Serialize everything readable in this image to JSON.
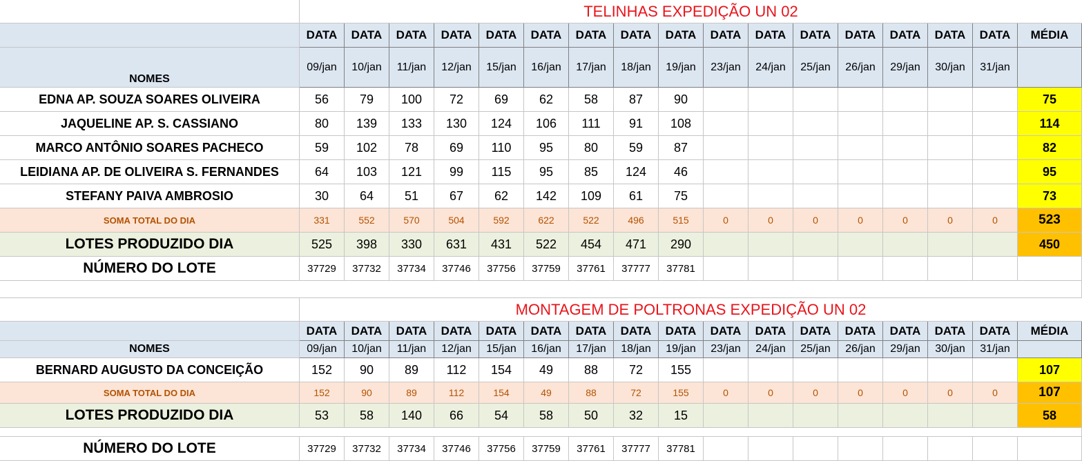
{
  "columns": {
    "data_label": "DATA",
    "media_label": "MÉDIA",
    "names_label": "NOMES",
    "dates": [
      "09/jan",
      "10/jan",
      "11/jan",
      "12/jan",
      "15/jan",
      "16/jan",
      "17/jan",
      "18/jan",
      "19/jan",
      "23/jan",
      "24/jan",
      "25/jan",
      "26/jan",
      "29/jan",
      "30/jan",
      "31/jan"
    ]
  },
  "section1": {
    "title": "TELINHAS EXPEDIÇÃO UN 02",
    "workers": [
      {
        "name": "EDNA AP. SOUZA SOARES OLIVEIRA",
        "values": [
          "56",
          "79",
          "100",
          "72",
          "69",
          "62",
          "58",
          "87",
          "90"
        ],
        "media": "75"
      },
      {
        "name": "JAQUELINE AP.  S. CASSIANO",
        "values": [
          "80",
          "139",
          "133",
          "130",
          "124",
          "106",
          "111",
          "91",
          "108"
        ],
        "media": "114"
      },
      {
        "name": "MARCO ANTÔNIO SOARES PACHECO",
        "values": [
          "59",
          "102",
          "78",
          "69",
          "110",
          "95",
          "80",
          "59",
          "87"
        ],
        "media": "82"
      },
      {
        "name": "LEIDIANA AP. DE OLIVEIRA S. FERNANDES",
        "values": [
          "64",
          "103",
          "121",
          "99",
          "115",
          "95",
          "85",
          "124",
          "46"
        ],
        "media": "95"
      },
      {
        "name": "STEFANY PAIVA AMBROSIO",
        "values": [
          "30",
          "64",
          "51",
          "67",
          "62",
          "142",
          "109",
          "61",
          "75"
        ],
        "media": "73"
      }
    ],
    "soma": {
      "label": "SOMA TOTAL DO DIA",
      "values": [
        "331",
        "552",
        "570",
        "504",
        "592",
        "622",
        "522",
        "496",
        "515",
        "0",
        "0",
        "0",
        "0",
        "0",
        "0",
        "0"
      ],
      "media": "523"
    },
    "lotes": {
      "label": "LOTES PRODUZIDO DIA",
      "values": [
        "525",
        "398",
        "330",
        "631",
        "431",
        "522",
        "454",
        "471",
        "290"
      ],
      "media": "450"
    },
    "numero": {
      "label": "NÚMERO DO LOTE",
      "values": [
        "37729",
        "37732",
        "37734",
        "37746",
        "37756",
        "37759",
        "37761",
        "37777",
        "37781"
      ]
    }
  },
  "section2": {
    "title": "MONTAGEM DE POLTRONAS EXPEDIÇÃO UN 02",
    "workers": [
      {
        "name": "BERNARD AUGUSTO DA CONCEIÇÃO",
        "values": [
          "152",
          "90",
          "89",
          "112",
          "154",
          "49",
          "88",
          "72",
          "155"
        ],
        "media": "107"
      }
    ],
    "soma": {
      "label": "SOMA TOTAL DO DIA",
      "values": [
        "152",
        "90",
        "89",
        "112",
        "154",
        "49",
        "88",
        "72",
        "155",
        "0",
        "0",
        "0",
        "0",
        "0",
        "0",
        "0"
      ],
      "media": "107"
    },
    "lotes": {
      "label": "LOTES PRODUZIDO DIA",
      "values": [
        "53",
        "58",
        "140",
        "66",
        "54",
        "58",
        "50",
        "32",
        "15"
      ],
      "media": "58"
    },
    "numero": {
      "label": "NÚMERO DO LOTE",
      "values": [
        "37729",
        "37732",
        "37734",
        "37746",
        "37756",
        "37759",
        "37761",
        "37777",
        "37781"
      ]
    }
  }
}
